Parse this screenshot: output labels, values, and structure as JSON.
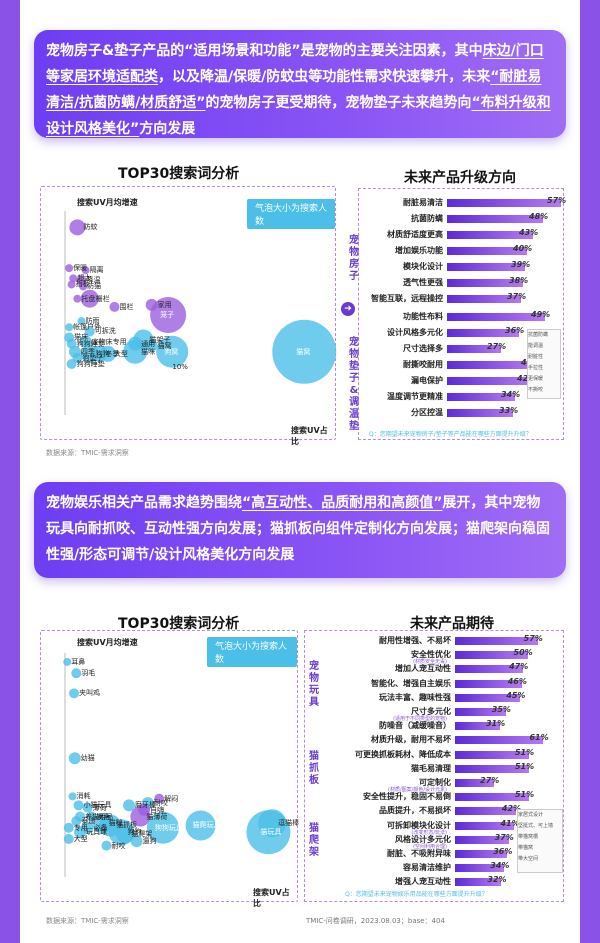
{
  "banner1": {
    "p1": "宠物房子&垫子产品的",
    "h1": "“适用场景和功能”",
    "p2": "是宠物的主要关注因素，其中",
    "u1": "床边/门口等家居环境适配类",
    "p3": "，以及降温/保暖/防蚊虫等功能性需求快速攀升，未来",
    "u2": "“耐脏易清洁/抗菌防螨/材质舒适”",
    "p4": "的宠物房子更受期待，宠物垫子未来趋势向",
    "u3": "“布料升级和设计风格美化”",
    "p5": "方向发展"
  },
  "banner2": {
    "p1": "宠物娱乐相关产品需求趋势围绕",
    "u1": "“高互动性、品质耐用和高颜值”",
    "p2": "展开，其中宠物玩具向耐抓咬、互动性强方向发展；猫抓板向组件定制化方向发展；猫爬架向稳固性强/形态可调节/设计风格美化方向发展"
  },
  "colors": {
    "accent": "#8a52e6",
    "bubble_purple": "#9b5fe0",
    "bubble_blue": "#4bbfe7",
    "bar": "#6b3bd0"
  },
  "chart1": {
    "title": "TOP30搜索词分析",
    "ylabel": "搜索UV月均增速",
    "xlabel": "搜索UV占比",
    "legend": "气泡大小为搜索人数",
    "source": "数据来源：TMIC-需求洞察",
    "bubbles": [
      {
        "label": "防蚊",
        "x": 1.5,
        "y": 92,
        "s": 8,
        "c": "p"
      },
      {
        "label": "保暖",
        "x": 0.5,
        "y": 72,
        "s": 4,
        "c": "p"
      },
      {
        "label": "隔离",
        "x": 2.5,
        "y": 71,
        "s": 4,
        "c": "p"
      },
      {
        "label": "超大",
        "x": 1.0,
        "y": 67,
        "s": 4,
        "c": "p"
      },
      {
        "label": "降温",
        "x": 2.0,
        "y": 66,
        "s": 5,
        "c": "p"
      },
      {
        "label": "指板",
        "x": 0.8,
        "y": 64,
        "s": 4,
        "c": "p"
      },
      {
        "label": "防猫",
        "x": 2.2,
        "y": 63,
        "s": 4,
        "c": "p"
      },
      {
        "label": "托盘",
        "x": 1.5,
        "y": 57,
        "s": 4,
        "c": "p"
      },
      {
        "label": "栅栏",
        "x": 3.0,
        "y": 57,
        "s": 9,
        "c": "p"
      },
      {
        "label": "家用",
        "x": 10.5,
        "y": 54,
        "s": 6,
        "c": "p"
      },
      {
        "label": "围栏",
        "x": 6.0,
        "y": 53,
        "s": 5,
        "c": "p"
      },
      {
        "label": "笼子",
        "x": 12.5,
        "y": 49,
        "s": 18,
        "c": "p"
      },
      {
        "label": "防雨",
        "x": 2.0,
        "y": 46,
        "s": 4,
        "c": "b"
      },
      {
        "label": "帐篷户外",
        "x": 0.5,
        "y": 43,
        "s": 4,
        "c": "b"
      },
      {
        "label": "可拆洗",
        "x": 3.0,
        "y": 41,
        "s": 5,
        "c": "b"
      },
      {
        "label": "猫床",
        "x": 0.5,
        "y": 38,
        "s": 5,
        "c": "b"
      },
      {
        "label": "宠物床专用",
        "x": 2.5,
        "y": 36,
        "s": 6,
        "c": "b"
      },
      {
        "label": "狗狗睡觉",
        "x": 0.8,
        "y": 35,
        "s": 5,
        "c": "b"
      },
      {
        "label": "猫架子",
        "x": 9.5,
        "y": 37,
        "s": 10,
        "c": "b"
      },
      {
        "label": "通用",
        "x": 8.5,
        "y": 35,
        "s": 7,
        "c": "b"
      },
      {
        "label": "猫窝",
        "x": 10.5,
        "y": 34,
        "s": 6,
        "c": "b"
      },
      {
        "label": "狗窝",
        "x": 13.0,
        "y": 31,
        "s": 16,
        "c": "b"
      },
      {
        "label": "四季",
        "x": 1.2,
        "y": 31,
        "s": 6,
        "c": "b"
      },
      {
        "label": "狗狗",
        "x": 3.0,
        "y": 30,
        "s": 9,
        "c": "b"
      },
      {
        "label": "冬季",
        "x": 4.2,
        "y": 30,
        "s": 8,
        "c": "b"
      },
      {
        "label": "大型",
        "x": 5.2,
        "y": 30,
        "s": 8,
        "c": "b"
      },
      {
        "label": "猫咪",
        "x": 8.5,
        "y": 31,
        "s": 12,
        "c": "b"
      },
      {
        "label": "狗垫子",
        "x": 1.5,
        "y": 28,
        "s": 5,
        "c": "b"
      },
      {
        "label": "狗狗睡垫",
        "x": 0.8,
        "y": 25,
        "s": 5,
        "c": "b"
      },
      {
        "label": "猫窝",
        "x": 29.0,
        "y": 31,
        "s": 32,
        "c": "b"
      },
      {
        "label": "10%",
        "x": 13.5,
        "y": 23,
        "s": 0,
        "c": "n"
      }
    ]
  },
  "bars1": {
    "title": "未来产品升级方向",
    "house_group": "宠物房子",
    "mat_group": "宠物垫子&调温垫",
    "question": "Q：您期望未来宠物房子/垫子等产品能在哪些方面提升升级？",
    "house": [
      {
        "label": "耐脏易清洁",
        "pct": "57%",
        "v": 57
      },
      {
        "label": "抗菌防螨",
        "pct": "48%",
        "v": 48
      },
      {
        "label": "材质舒适度更高",
        "pct": "43%",
        "v": 43
      },
      {
        "label": "增加娱乐功能",
        "pct": "40%",
        "v": 40
      },
      {
        "label": "模块化设计",
        "pct": "39%",
        "v": 39
      },
      {
        "label": "透气性更强",
        "pct": "38%",
        "v": 38
      },
      {
        "label": "智能互联，远程操控",
        "pct": "37%",
        "v": 37
      }
    ],
    "mat": [
      {
        "label": "功能性布料",
        "pct": "49%",
        "v": 49
      },
      {
        "label": "设计风格多元化",
        "pct": "36%",
        "v": 36
      },
      {
        "label": "尺寸选择多",
        "pct": "27%",
        "v": 27
      },
      {
        "label": "耐撕咬耐用",
        "pct": "44%",
        "v": 44
      },
      {
        "label": "漏电保护",
        "pct": "42%",
        "v": 42
      },
      {
        "label": "温度调节更精准",
        "pct": "34%",
        "v": 34
      },
      {
        "label": "分区控温",
        "pct": "33%",
        "v": 33
      }
    ],
    "legend": [
      "抗菌防螨",
      "能调温",
      "耐脏性",
      "手拉性",
      "更保暖",
      "不撕咬"
    ]
  },
  "chart2": {
    "title": "TOP30搜索词分析",
    "ylabel": "搜索UV月均增速",
    "xlabel": "搜索UV占比",
    "legend": "气泡大小为搜索人数",
    "source": "数据来源：TMIC-需求洞察",
    "bubbles": [
      {
        "label": "耳鼻",
        "x": 0.3,
        "y": 96,
        "s": 4,
        "c": "b"
      },
      {
        "label": "羽毛",
        "x": 1.5,
        "y": 91,
        "s": 5,
        "c": "b"
      },
      {
        "label": "夹叫鸡",
        "x": 1.2,
        "y": 82,
        "s": 5,
        "c": "b"
      },
      {
        "label": "幼猫",
        "x": 1.3,
        "y": 53,
        "s": 6,
        "c": "b"
      },
      {
        "label": "消耗",
        "x": 1.0,
        "y": 36,
        "s": 4,
        "c": "b"
      },
      {
        "label": "小猫玩具",
        "x": 1.8,
        "y": 32,
        "s": 5,
        "c": "b"
      },
      {
        "label": "薄荷",
        "x": 3.0,
        "y": 31,
        "s": 5,
        "c": "b"
      },
      {
        "label": "磨牙棒",
        "x": 8.5,
        "y": 32,
        "s": 6,
        "c": "b"
      },
      {
        "label": "耐咬",
        "x": 11.0,
        "y": 33,
        "s": 6,
        "c": "b"
      },
      {
        "label": "解闷",
        "x": 12.5,
        "y": 35,
        "s": 5,
        "c": "p"
      },
      {
        "label": "自嗨",
        "x": 10.5,
        "y": 30,
        "s": 6,
        "c": "p"
      },
      {
        "label": "猫薄荷",
        "x": 10.0,
        "y": 27,
        "s": 10,
        "c": "p"
      },
      {
        "label": "养猫用品",
        "x": 2.0,
        "y": 27,
        "s": 5,
        "c": "b"
      },
      {
        "label": "发声",
        "x": 3.5,
        "y": 27,
        "s": 5,
        "c": "b"
      },
      {
        "label": "泰迪",
        "x": 1.5,
        "y": 25,
        "s": 5,
        "c": "b"
      },
      {
        "label": "猫咪",
        "x": 5.0,
        "y": 24,
        "s": 10,
        "c": "b"
      },
      {
        "label": "猫抓板",
        "x": 6.0,
        "y": 23,
        "s": 11,
        "c": "b"
      },
      {
        "label": "必备",
        "x": 3.0,
        "y": 22,
        "s": 6,
        "c": "b"
      },
      {
        "label": "狗狗玩具",
        "x": 13.0,
        "y": 22,
        "s": 16,
        "c": "b"
      },
      {
        "label": "专用",
        "x": 0.5,
        "y": 22,
        "s": 5,
        "c": "b"
      },
      {
        "label": "玩具球",
        "x": 2.0,
        "y": 20,
        "s": 6,
        "c": "b"
      },
      {
        "label": "狗狗",
        "x": 7.5,
        "y": 20,
        "s": 13,
        "c": "b"
      },
      {
        "label": "猫爬架",
        "x": 8.0,
        "y": 19,
        "s": 9,
        "c": "b"
      },
      {
        "label": "大型",
        "x": 0.5,
        "y": 17,
        "s": 5,
        "c": "b"
      },
      {
        "label": "遛狗",
        "x": 9.5,
        "y": 16,
        "s": 6,
        "c": "b"
      },
      {
        "label": "耐咬",
        "x": 5.5,
        "y": 14,
        "s": 5,
        "c": "b"
      },
      {
        "label": "逗猫棒",
        "x": 27.5,
        "y": 24,
        "s": 14,
        "c": "b"
      },
      {
        "label": "猫玩具",
        "x": 27.0,
        "y": 20,
        "s": 22,
        "c": "b"
      },
      {
        "label": "猫爬玩具",
        "x": 18.0,
        "y": 23,
        "s": 15,
        "c": "b"
      }
    ]
  },
  "bars2": {
    "title": "未来产品期待",
    "group_toy": "宠物玩具",
    "group_board": "猫抓板",
    "group_tree": "猫爬架",
    "question": "Q：您期望未来宠物娱乐用品能在哪些方面提升升级？",
    "footer": "TMIC-问卷调研，2023.08.03；base：404",
    "toy": [
      {
        "label": "耐用性增强、不易坏",
        "pct": "57%",
        "v": 57,
        "note": ""
      },
      {
        "label": "安全性优化",
        "pct": "50%",
        "v": 50,
        "note": "(材质安全无毒)"
      },
      {
        "label": "增加人宠互动性",
        "pct": "47%",
        "v": 47,
        "note": ""
      },
      {
        "label": "智能化、增强自主娱乐",
        "pct": "46%",
        "v": 46,
        "note": ""
      },
      {
        "label": "玩法丰富、趣味性强",
        "pct": "45%",
        "v": 45,
        "note": ""
      },
      {
        "label": "尺寸多元化",
        "pct": "35%",
        "v": 35,
        "note": "(适用于不同类型的宠物)"
      },
      {
        "label": "防噪音（减缓噪音）",
        "pct": "31%",
        "v": 31,
        "note": ""
      }
    ],
    "board": [
      {
        "label": "材质升级，耐用不易坏",
        "pct": "61%",
        "v": 61,
        "note": ""
      },
      {
        "label": "可更换抓板耗材、降低成本",
        "pct": "51%",
        "v": 51,
        "note": ""
      },
      {
        "label": "猫毛易清理",
        "pct": "51%",
        "v": 51,
        "note": ""
      },
      {
        "label": "可定制化",
        "pct": "27%",
        "v": 27,
        "note": "(材质/图案/颜色/设计元素)"
      }
    ],
    "tree": [
      {
        "label": "安全性提升，稳固不易倒",
        "pct": "51%",
        "v": 51,
        "note": ""
      },
      {
        "label": "品质提升，不易损坏",
        "pct": "42%",
        "v": 42,
        "note": ""
      },
      {
        "label": "可拆卸模块化设计",
        "pct": "41%",
        "v": 41,
        "note": "(改变形态/玩法)"
      },
      {
        "label": "风格设计多元化",
        "pct": "37%",
        "v": 37,
        "note": "(空间利用合理)"
      },
      {
        "label": "耐脏、不吸附异味",
        "pct": "36%",
        "v": 36,
        "note": ""
      },
      {
        "label": "容易清洁维护",
        "pct": "34%",
        "v": 34,
        "note": ""
      },
      {
        "label": "增强人宠互动性",
        "pct": "32%",
        "v": 32,
        "note": ""
      }
    ],
    "legend": [
      "家居式设计",
      "坚挺式、可上墙",
      "带猫窝槽",
      "带猫窝",
      "带大空间"
    ]
  },
  "chart_data": [
    {
      "type": "scatter",
      "title": "TOP30搜索词分析",
      "xlabel": "搜索UV占比",
      "ylabel": "搜索UV月均增速",
      "note": "气泡大小为搜索人数"
    },
    {
      "type": "bar",
      "title": "未来产品升级方向",
      "categories": [
        "耐脏易清洁",
        "抗菌防螨",
        "材质舒适度更高",
        "增加娱乐功能",
        "模块化设计",
        "透气性更强",
        "智能互联，远程操控",
        "功能性布料",
        "设计风格多元化",
        "尺寸选择多",
        "耐撕咬耐用",
        "漏电保护",
        "温度调节更精准",
        "分区控温"
      ],
      "values": [
        57,
        48,
        43,
        40,
        39,
        38,
        37,
        49,
        36,
        27,
        44,
        42,
        34,
        33
      ]
    },
    {
      "type": "scatter",
      "title": "TOP30搜索词分析",
      "xlabel": "搜索UV占比",
      "ylabel": "搜索UV月均增速",
      "note": "气泡大小为搜索人数"
    },
    {
      "type": "bar",
      "title": "未来产品期待",
      "categories": [
        "耐用性增强、不易坏",
        "安全性优化",
        "增加人宠互动性",
        "智能化、增强自主娱乐",
        "玩法丰富、趣味性强",
        "尺寸多元化",
        "防噪音（减缓噪音）",
        "材质升级，耐用不易坏",
        "可更换抓板耗材、降低成本",
        "猫毛易清理",
        "可定制化",
        "安全性提升，稳固不易倒",
        "品质提升，不易损坏",
        "可拆卸模块化设计",
        "风格设计多元化",
        "耐脏、不吸附异味",
        "容易清洁维护",
        "增强人宠互动性"
      ],
      "values": [
        57,
        50,
        47,
        46,
        45,
        35,
        31,
        61,
        51,
        51,
        27,
        51,
        42,
        41,
        37,
        36,
        34,
        32
      ]
    }
  ]
}
